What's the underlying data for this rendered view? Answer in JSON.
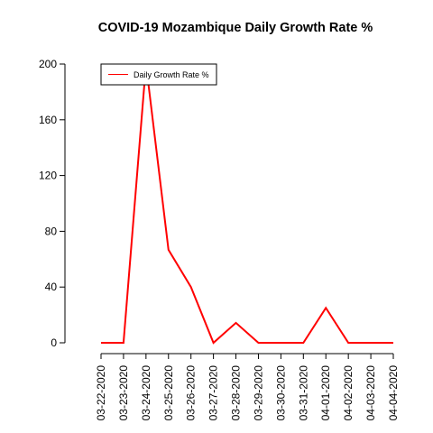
{
  "chart_data": {
    "type": "line",
    "title": "COVID-19 Mozambique Daily Growth Rate %",
    "xlabel": "",
    "ylabel": "",
    "categories": [
      "03-22-2020",
      "03-23-2020",
      "03-24-2020",
      "03-25-2020",
      "03-26-2020",
      "03-27-2020",
      "03-28-2020",
      "03-29-2020",
      "03-30-2020",
      "03-31-2020",
      "04-01-2020",
      "04-02-2020",
      "04-03-2020",
      "04-04-2020"
    ],
    "series": [
      {
        "name": "Daily Growth Rate %",
        "color": "#ff0000",
        "values": [
          0,
          0,
          200,
          66.7,
          40,
          0,
          14.3,
          0,
          0,
          0,
          25,
          0,
          0,
          0
        ]
      }
    ],
    "ylim": [
      0,
      200
    ],
    "yticks": [
      0,
      40,
      80,
      120,
      160,
      200
    ],
    "grid": false,
    "legend_position": "top-left"
  }
}
